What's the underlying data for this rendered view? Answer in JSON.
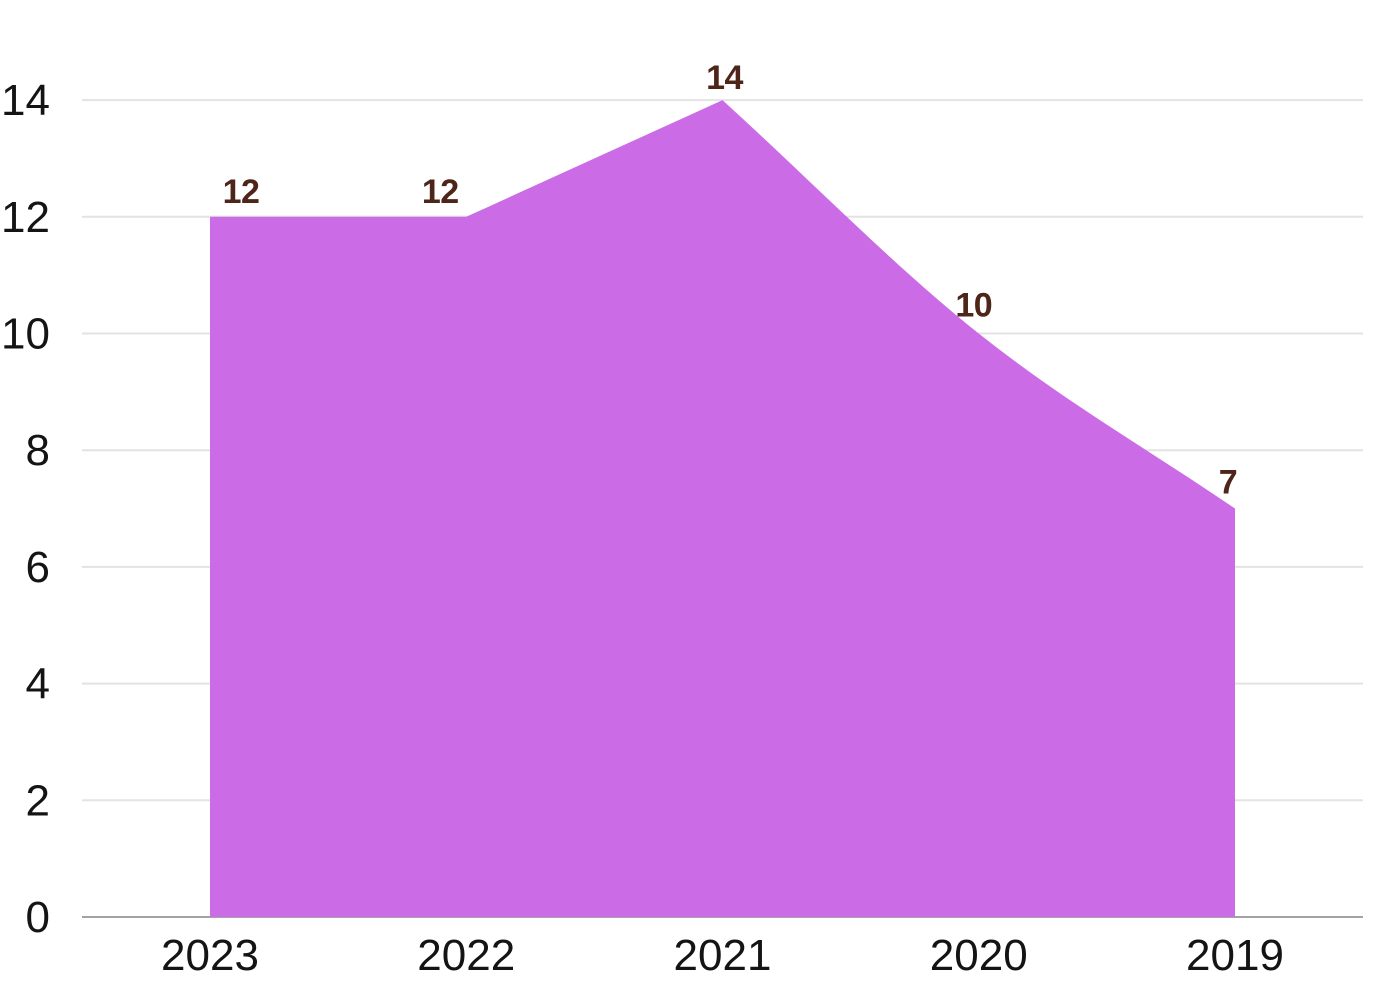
{
  "chart_data": {
    "type": "area",
    "title": "",
    "xlabel": "",
    "ylabel": "",
    "categories": [
      "2023",
      "2022",
      "2021",
      "2020",
      "2019"
    ],
    "values": [
      12,
      12,
      14,
      10,
      7
    ],
    "data_labels": [
      "12",
      "12",
      "14",
      "10",
      "7"
    ],
    "ylim": [
      0,
      14
    ],
    "ytick_labels": [
      "0",
      "2",
      "4",
      "6",
      "8",
      "10",
      "12",
      "14"
    ],
    "grid": true,
    "legend_position": "none",
    "smooth": true,
    "colors": {
      "area_fill": "#CB6CE6",
      "data_label": "#4D2619",
      "axis_text": "#141414",
      "gridline": "#E3E3E3",
      "baseline": "#A3A3A3",
      "background": "#FFFFFF"
    }
  }
}
